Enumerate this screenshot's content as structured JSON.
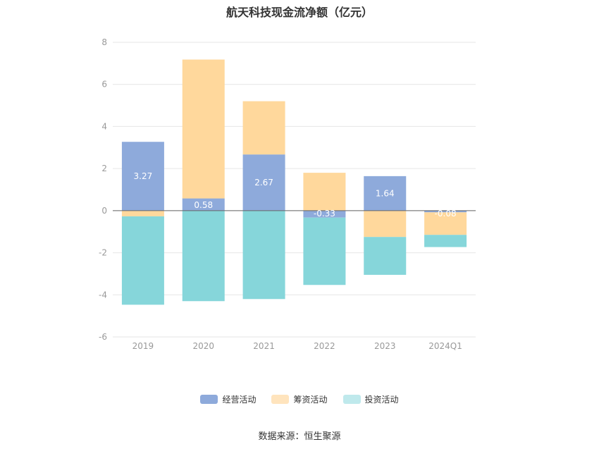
{
  "chart_data": {
    "type": "bar",
    "stacked": true,
    "title": "航天科技现金流净额（亿元）",
    "categories": [
      "2019",
      "2020",
      "2021",
      "2022",
      "2023",
      "2024Q1"
    ],
    "series": [
      {
        "name": "经营活动",
        "color": "#8eaadb",
        "values": [
          3.27,
          0.58,
          2.67,
          -0.33,
          1.64,
          -0.08
        ]
      },
      {
        "name": "筹资活动",
        "color": "#ffd89c",
        "values": [
          -0.27,
          6.6,
          2.53,
          1.8,
          -1.25,
          -1.07
        ]
      },
      {
        "name": "投资活动",
        "color": "#86d6da",
        "values": [
          -4.2,
          -4.3,
          -4.2,
          -3.2,
          -1.8,
          -0.58
        ]
      }
    ],
    "data_labels": [
      "3.27",
      "0.58",
      "2.67",
      "-0.33",
      "1.64",
      "-0.08"
    ],
    "ylim": [
      -6,
      8
    ],
    "yticks": [
      "-6",
      "-4",
      "-2",
      "0",
      "2",
      "4",
      "6",
      "8"
    ],
    "grid": true,
    "legend_position": "bottom",
    "legend_swatch_colors": [
      "#8eaadb",
      "#ffe4bd",
      "#bfe9ec"
    ],
    "source": "数据来源：恒生聚源"
  }
}
